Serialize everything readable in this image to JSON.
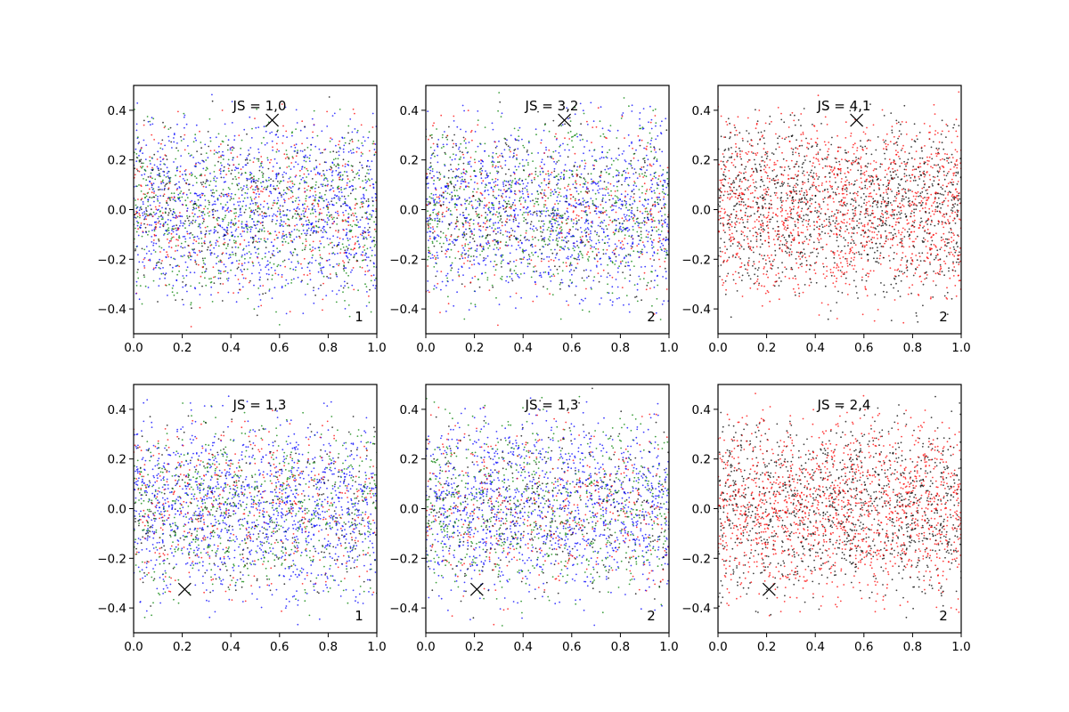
{
  "chart_data": [
    {
      "type": "scatter",
      "annotation": "JS = 1,0",
      "corner_label": "1",
      "marker": {
        "x": 0.57,
        "y": 0.36
      },
      "palette": [
        "#0000ff",
        "#008000",
        "#ff0000",
        "#000000"
      ],
      "color_weights": [
        0.45,
        0.27,
        0.16,
        0.12
      ],
      "xlim": [
        0.0,
        1.0
      ],
      "ylim": [
        -0.5,
        0.5
      ],
      "xticks": [
        "0.0",
        "0.2",
        "0.4",
        "0.6",
        "0.8",
        "1.0"
      ],
      "yticks": [
        "-0.4",
        "-0.2",
        "0.0",
        "0.2",
        "0.4"
      ],
      "seed": 11
    },
    {
      "type": "scatter",
      "annotation": "JS = 3,2",
      "corner_label": "2",
      "marker": {
        "x": 0.57,
        "y": 0.36
      },
      "palette": [
        "#0000ff",
        "#008000",
        "#ff0000",
        "#000000"
      ],
      "color_weights": [
        0.45,
        0.27,
        0.16,
        0.12
      ],
      "xlim": [
        0.0,
        1.0
      ],
      "ylim": [
        -0.5,
        0.5
      ],
      "xticks": [
        "0.0",
        "0.2",
        "0.4",
        "0.6",
        "0.8",
        "1.0"
      ],
      "yticks": [
        "-0.4",
        "-0.2",
        "0.0",
        "0.2",
        "0.4"
      ],
      "seed": 23
    },
    {
      "type": "scatter",
      "annotation": "JS = 4,1",
      "corner_label": "2",
      "marker": {
        "x": 0.57,
        "y": 0.36
      },
      "palette": [
        "#ff0000",
        "#000000"
      ],
      "color_weights": [
        0.55,
        0.45
      ],
      "xlim": [
        0.0,
        1.0
      ],
      "ylim": [
        -0.5,
        0.5
      ],
      "xticks": [
        "0.0",
        "0.2",
        "0.4",
        "0.6",
        "0.8",
        "1.0"
      ],
      "yticks": [
        "-0.4",
        "-0.2",
        "0.0",
        "0.2",
        "0.4"
      ],
      "seed": 37
    },
    {
      "type": "scatter",
      "annotation": "JS = 1,3",
      "corner_label": "1",
      "marker": {
        "x": 0.21,
        "y": -0.325
      },
      "palette": [
        "#0000ff",
        "#008000",
        "#ff0000",
        "#000000"
      ],
      "color_weights": [
        0.45,
        0.27,
        0.16,
        0.12
      ],
      "xlim": [
        0.0,
        1.0
      ],
      "ylim": [
        -0.5,
        0.5
      ],
      "xticks": [
        "0.0",
        "0.2",
        "0.4",
        "0.6",
        "0.8",
        "1.0"
      ],
      "yticks": [
        "-0.4",
        "-0.2",
        "0.0",
        "0.2",
        "0.4"
      ],
      "seed": 41
    },
    {
      "type": "scatter",
      "annotation": "JS = 1,3",
      "corner_label": "2",
      "marker": {
        "x": 0.21,
        "y": -0.325
      },
      "palette": [
        "#0000ff",
        "#008000",
        "#ff0000",
        "#000000"
      ],
      "color_weights": [
        0.45,
        0.27,
        0.16,
        0.12
      ],
      "xlim": [
        0.0,
        1.0
      ],
      "ylim": [
        -0.5,
        0.5
      ],
      "xticks": [
        "0.0",
        "0.2",
        "0.4",
        "0.6",
        "0.8",
        "1.0"
      ],
      "yticks": [
        "-0.4",
        "-0.2",
        "0.0",
        "0.2",
        "0.4"
      ],
      "seed": 53
    },
    {
      "type": "scatter",
      "annotation": "JS = 2,4",
      "corner_label": "2",
      "marker": {
        "x": 0.21,
        "y": -0.325
      },
      "palette": [
        "#ff0000",
        "#000000"
      ],
      "color_weights": [
        0.55,
        0.45
      ],
      "xlim": [
        0.0,
        1.0
      ],
      "ylim": [
        -0.5,
        0.5
      ],
      "xticks": [
        "0.0",
        "0.2",
        "0.4",
        "0.6",
        "0.8",
        "1.0"
      ],
      "yticks": [
        "-0.4",
        "-0.2",
        "0.0",
        "0.2",
        "0.4"
      ],
      "seed": 67
    }
  ]
}
